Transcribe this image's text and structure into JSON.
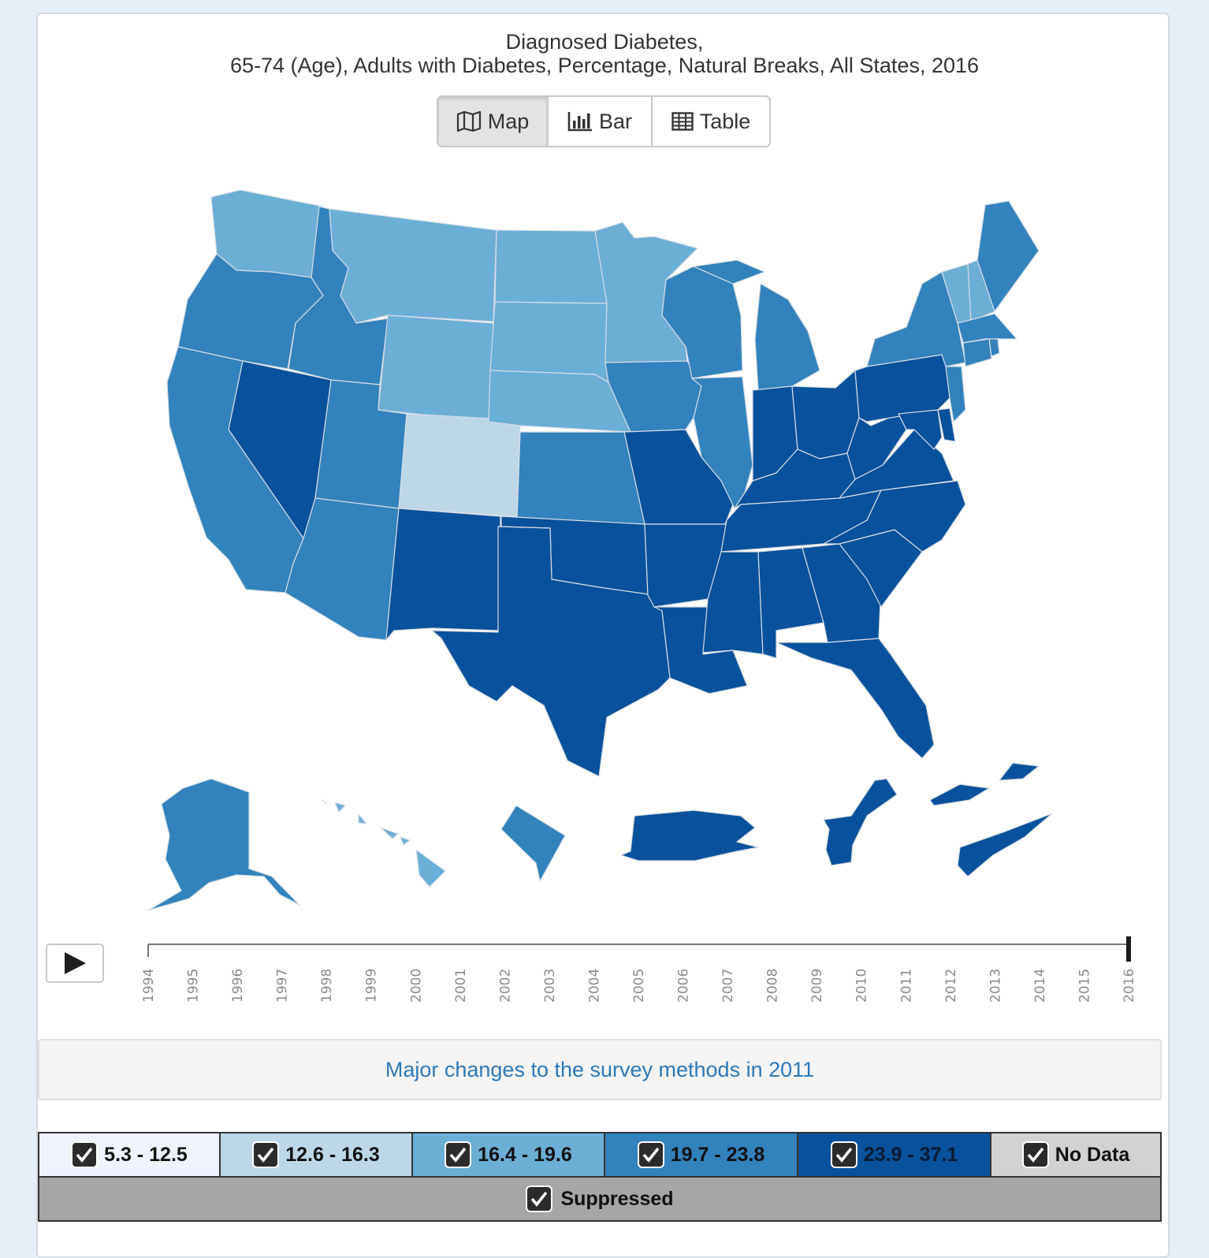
{
  "header": {
    "title_line1": "Diagnosed Diabetes,",
    "title_line2": "65-74 (Age), Adults with Diabetes, Percentage, Natural Breaks, All States, 2016"
  },
  "view_tabs": [
    {
      "label": "Map",
      "icon": "map-icon",
      "active": true
    },
    {
      "label": "Bar",
      "icon": "bar-chart-icon",
      "active": false
    },
    {
      "label": "Table",
      "icon": "table-icon",
      "active": false
    }
  ],
  "colors": {
    "c1": "#eff3ff",
    "c2": "#bdd7e7",
    "c3": "#6baed6",
    "c4": "#3182bd",
    "c5": "#08519c",
    "nodata": "#d2d2d2",
    "suppressed": "#a6a6a6"
  },
  "timeline": {
    "years": [
      "1994",
      "1995",
      "1996",
      "1997",
      "1998",
      "1999",
      "2000",
      "2001",
      "2002",
      "2003",
      "2004",
      "2005",
      "2006",
      "2007",
      "2008",
      "2009",
      "2010",
      "2011",
      "2012",
      "2013",
      "2014",
      "2015",
      "2016"
    ],
    "selected": "2016"
  },
  "notice": "Major changes to the survey methods in 2011",
  "legend": {
    "items": [
      {
        "label": "5.3 - 12.5",
        "checked": true
      },
      {
        "label": "12.6 - 16.3",
        "checked": true
      },
      {
        "label": "16.4 - 19.6",
        "checked": true
      },
      {
        "label": "19.7 - 23.8",
        "checked": true
      },
      {
        "label": "23.9 - 37.1",
        "checked": true
      },
      {
        "label": "No Data",
        "checked": true
      }
    ],
    "suppressed": {
      "label": "Suppressed",
      "checked": true
    }
  }
}
